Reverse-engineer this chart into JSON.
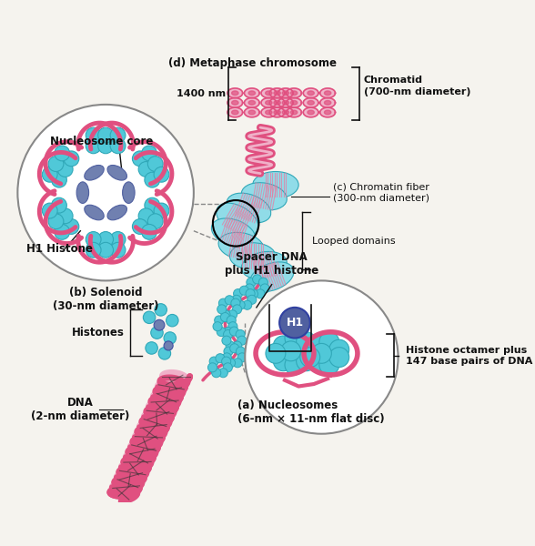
{
  "background_color": "#f5f3ee",
  "labels": {
    "d_metaphase": "(d) Metaphase chromosome",
    "nucleosome_core": "Nucleosome core",
    "h1_histone": "H1 Histone",
    "b_solenoid": "(b) Solenoid\n(30-nm diameter)",
    "c_chromatin": "(c) Chromatin fiber\n(300-nm diameter)",
    "looped_domains": "Looped domains",
    "spacer_dna": "Spacer DNA\nplus H1 histone",
    "histones": "Histones",
    "dna_label": "DNA\n(2-nm diameter)",
    "a_nucleosomes": "(a) Nucleosomes\n(6-nm × 11-nm flat disc)",
    "histone_octamer": "Histone octamer plus\n147 base pairs of DNA",
    "chromatid": "Chromatid\n(700-nm diameter)",
    "nm1400": "1400 nm",
    "h1_label": "H1"
  },
  "colors": {
    "pink": "#e05080",
    "pink_mid": "#e87aa0",
    "pink_light": "#f0b0c8",
    "cyan": "#50c8d8",
    "cyan_light": "#90dce8",
    "cyan_dark": "#30a8b8",
    "blue_histone": "#7080b0",
    "blue_h1": "#5060a0",
    "background": "#f5f3ee",
    "white": "#ffffff",
    "black": "#111111",
    "gray_line": "#777777",
    "text": "#111111"
  }
}
